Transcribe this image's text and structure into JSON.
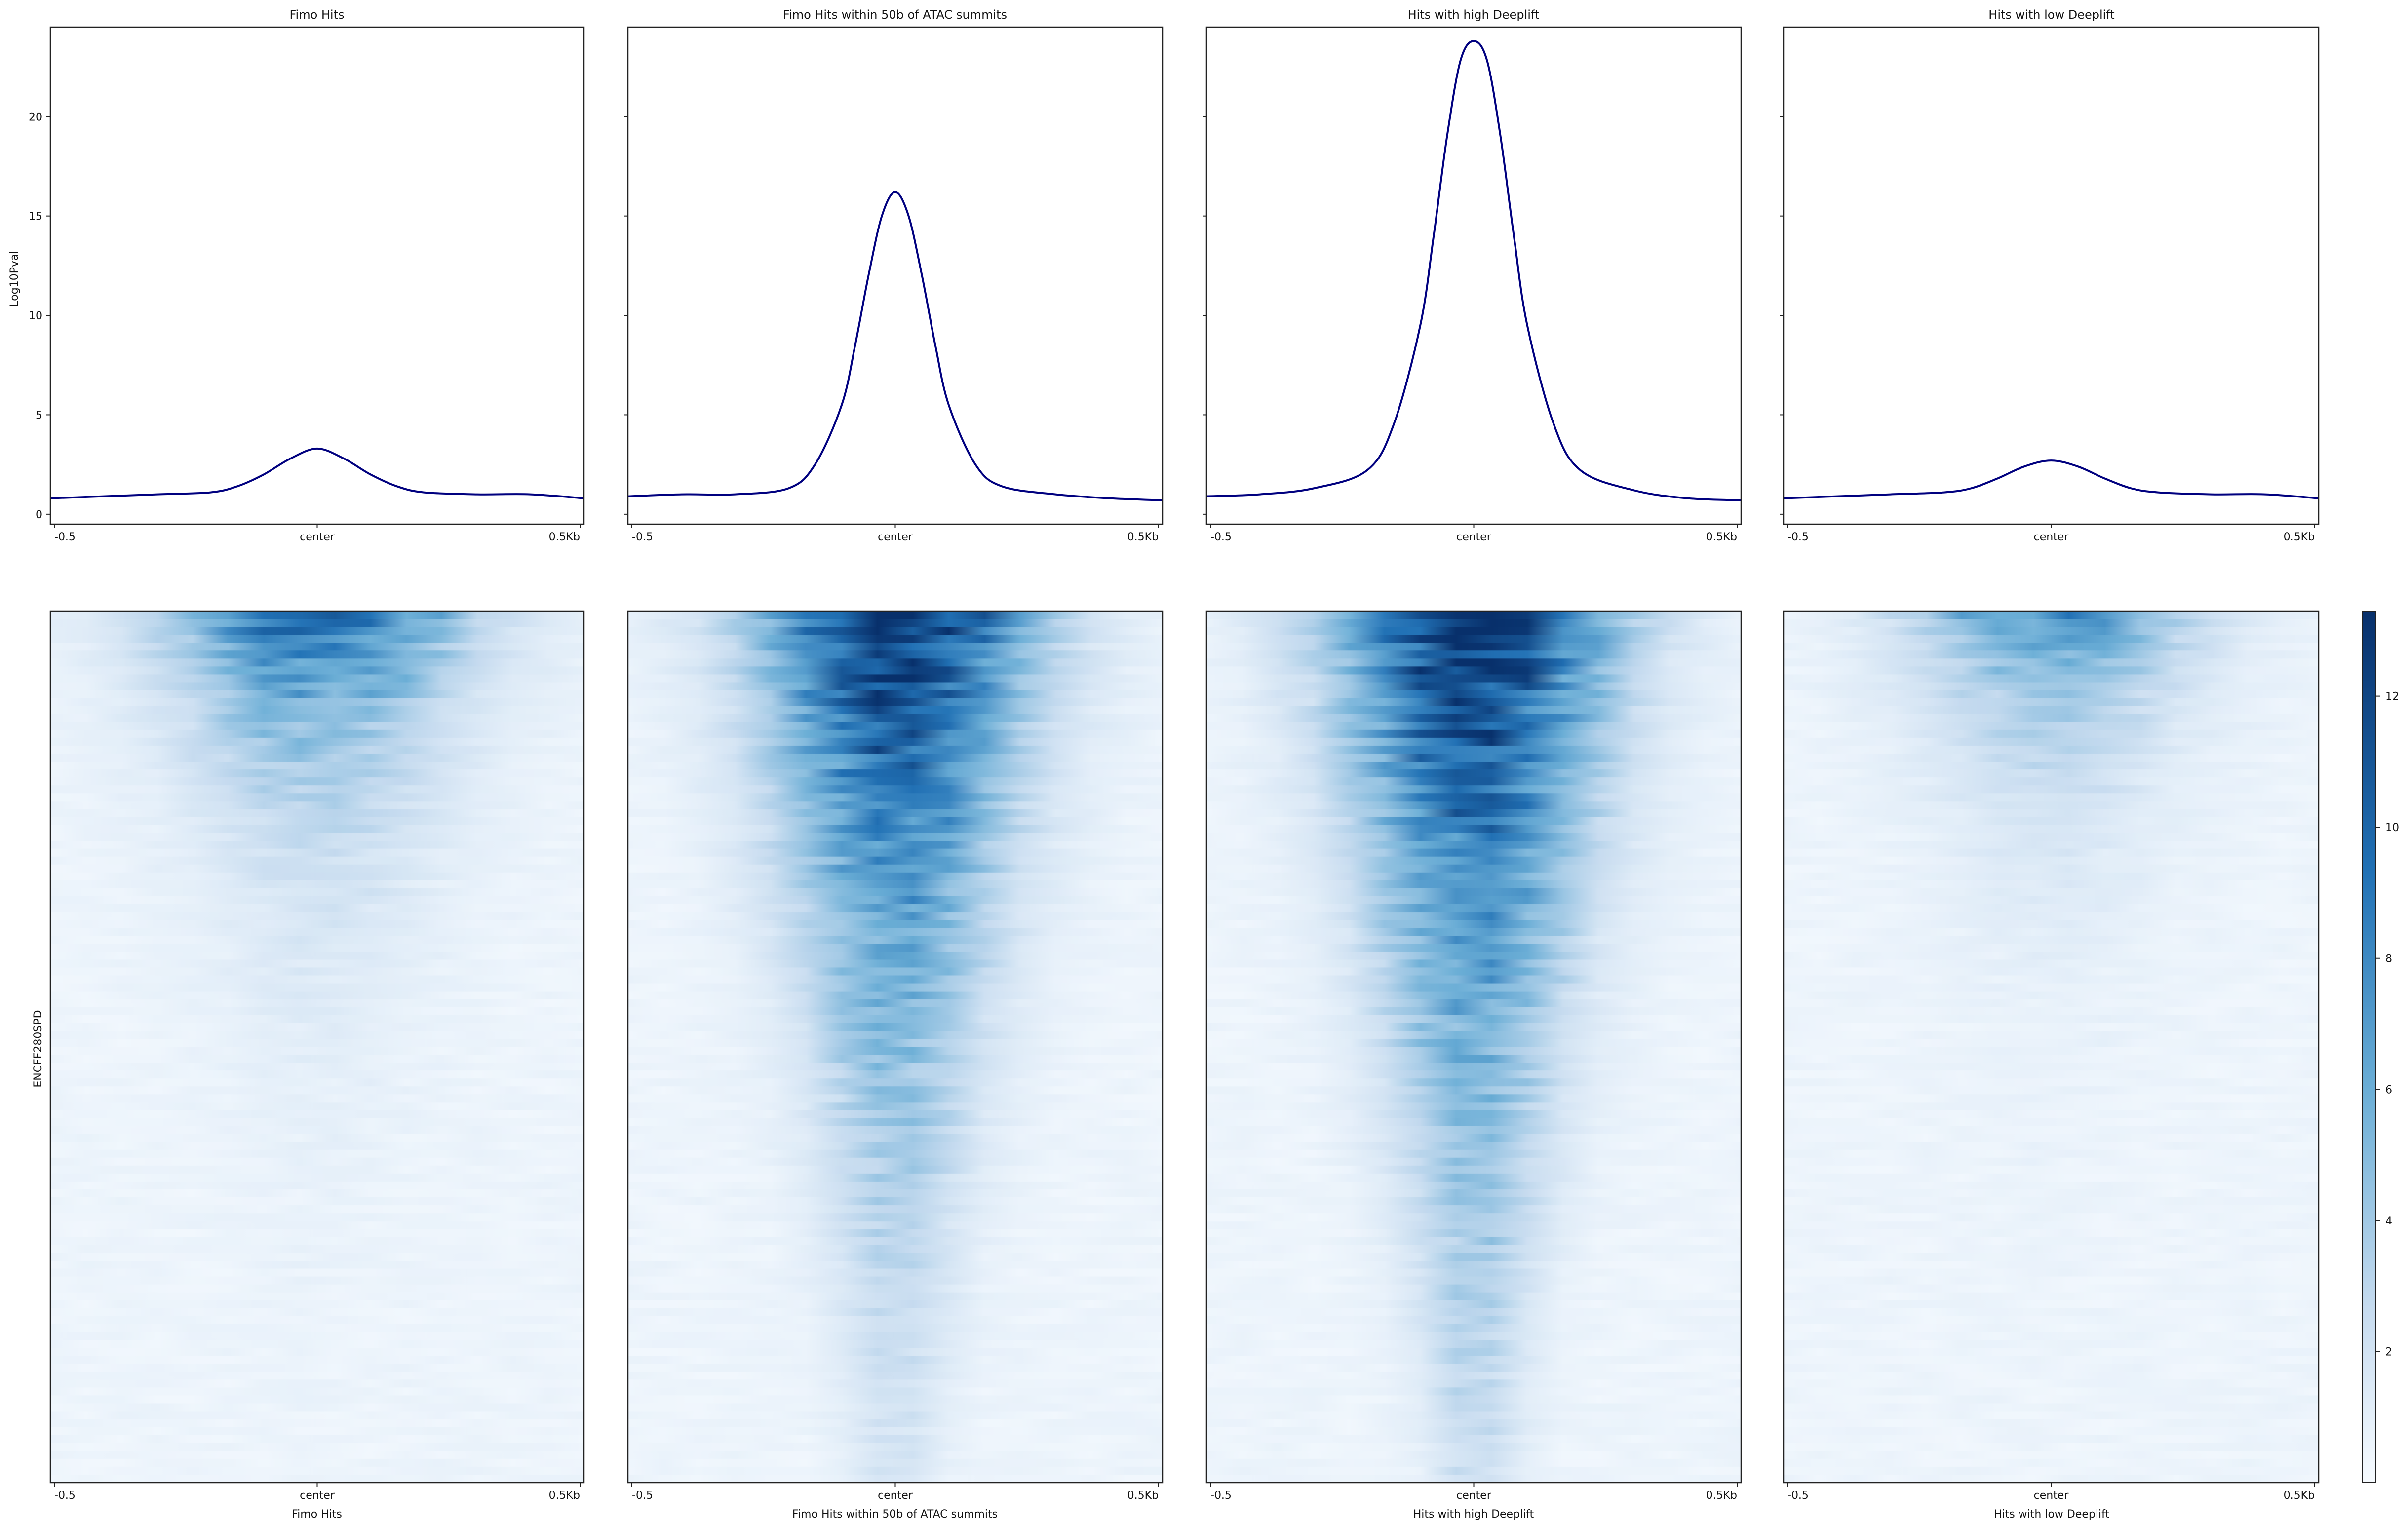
{
  "figure": {
    "ylabel_profile": "Log10Pval",
    "ylabel_heatmap": "ENCFF280SPD",
    "colors": {
      "profile_line": "#00007f",
      "heat_low": "#f7fbff",
      "heat_high": "#08306b",
      "axis": "#222222"
    }
  },
  "chart_data": [
    {
      "type": "line",
      "title": "Fimo Hits",
      "xticks": [
        "-0.5",
        "center",
        "0.5Kb"
      ],
      "xlim": [
        -500,
        500
      ],
      "ylim": [
        -0.5,
        24.5
      ],
      "yticks": [
        "0",
        "5",
        "10",
        "15",
        "20"
      ],
      "x": [
        -500,
        -400,
        -300,
        -200,
        -150,
        -100,
        -50,
        0,
        50,
        100,
        150,
        200,
        300,
        400,
        500
      ],
      "values": [
        0.8,
        0.9,
        1.0,
        1.1,
        1.4,
        2.0,
        2.8,
        3.3,
        2.8,
        2.0,
        1.4,
        1.1,
        1.0,
        1.0,
        0.8
      ]
    },
    {
      "type": "line",
      "title": "Fimo Hits within 50b of ATAC summits",
      "xticks": [
        "-0.5",
        "center",
        "0.5Kb"
      ],
      "xlim": [
        -500,
        500
      ],
      "ylim": [
        -0.5,
        24.5
      ],
      "yticks": [
        "0",
        "5",
        "10",
        "15",
        "20"
      ],
      "x": [
        -500,
        -400,
        -300,
        -200,
        -150,
        -100,
        -75,
        -50,
        -25,
        0,
        25,
        50,
        75,
        100,
        150,
        200,
        300,
        400,
        500
      ],
      "values": [
        0.9,
        1.0,
        1.0,
        1.3,
        2.5,
        5.5,
        8.5,
        12.0,
        15.0,
        16.2,
        15.0,
        12.0,
        8.5,
        5.5,
        2.5,
        1.4,
        1.0,
        0.8,
        0.7
      ]
    },
    {
      "type": "line",
      "title": "Hits with high Deeplift",
      "xticks": [
        "-0.5",
        "center",
        "0.5Kb"
      ],
      "xlim": [
        -500,
        500
      ],
      "ylim": [
        -0.5,
        24.5
      ],
      "yticks": [
        "0",
        "5",
        "10",
        "15",
        "20"
      ],
      "x": [
        -500,
        -400,
        -300,
        -200,
        -150,
        -100,
        -75,
        -50,
        -25,
        0,
        25,
        50,
        75,
        100,
        150,
        200,
        300,
        400,
        500
      ],
      "values": [
        0.9,
        1.0,
        1.3,
        2.2,
        4.5,
        9.5,
        14.0,
        19.0,
        22.8,
        23.8,
        22.8,
        19.0,
        14.0,
        9.5,
        4.5,
        2.2,
        1.2,
        0.8,
        0.7
      ]
    },
    {
      "type": "line",
      "title": "Hits with low Deeplift",
      "xticks": [
        "-0.5",
        "center",
        "0.5Kb"
      ],
      "xlim": [
        -500,
        500
      ],
      "ylim": [
        -0.5,
        24.5
      ],
      "yticks": [
        "0",
        "5",
        "10",
        "15",
        "20"
      ],
      "x": [
        -500,
        -400,
        -300,
        -200,
        -150,
        -100,
        -50,
        0,
        50,
        100,
        150,
        200,
        300,
        400,
        500
      ],
      "values": [
        0.8,
        0.9,
        1.0,
        1.1,
        1.3,
        1.8,
        2.4,
        2.7,
        2.4,
        1.8,
        1.3,
        1.1,
        1.0,
        1.0,
        0.8
      ]
    },
    {
      "type": "heatmap",
      "title": "",
      "xlabel": "Fimo Hits",
      "xticks": [
        "-0.5",
        "center",
        "0.5Kb"
      ],
      "center_intensity": 10,
      "width_factor": 1.1,
      "decay": 2.4
    },
    {
      "type": "heatmap",
      "title": "",
      "xlabel": "Fimo Hits within 50b of ATAC summits",
      "xticks": [
        "-0.5",
        "center",
        "0.5Kb"
      ],
      "center_intensity": 13,
      "width_factor": 1.0,
      "decay": 0.9
    },
    {
      "type": "heatmap",
      "title": "",
      "xlabel": "Hits with high Deeplift",
      "xticks": [
        "-0.5",
        "center",
        "0.5Kb"
      ],
      "center_intensity": 13,
      "width_factor": 1.0,
      "decay": 0.75
    },
    {
      "type": "heatmap",
      "title": "",
      "xlabel": "Hits with low Deeplift",
      "xticks": [
        "-0.5",
        "center",
        "0.5Kb"
      ],
      "center_intensity": 8,
      "width_factor": 1.0,
      "decay": 3.0
    },
    {
      "type": "heatmap",
      "title": "",
      "colorbar": true,
      "ylim": [
        0,
        13.3
      ],
      "yticks": [
        "2",
        "4",
        "6",
        "8",
        "10",
        "12"
      ]
    }
  ]
}
